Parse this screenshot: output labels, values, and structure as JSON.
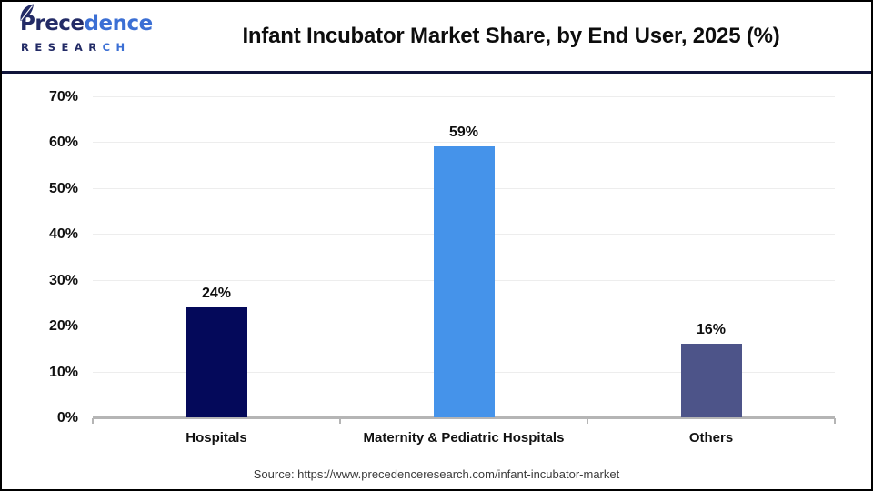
{
  "header": {
    "logo": {
      "name_dark": "Prece",
      "name_blue": "dence",
      "research_dark": "RESEAR",
      "research_blue": "CH"
    },
    "title": "Infant Incubator Market Share, by End User, 2025 (%)"
  },
  "chart_data": {
    "type": "bar",
    "title": "Infant Incubator Market Share, by End User, 2025 (%)",
    "categories": [
      "Hospitals",
      "Maternity & Pediatric Hospitals",
      "Others"
    ],
    "values": [
      24,
      59,
      16
    ],
    "value_labels": [
      "24%",
      "59%",
      "16%"
    ],
    "bar_colors": [
      "#04095a",
      "#4593ea",
      "#4d5489"
    ],
    "xlabel": "",
    "ylabel": "",
    "ylim": [
      0,
      70
    ],
    "ytick_step": 10,
    "ytick_suffix": "%",
    "grid": true,
    "legend_position": "none"
  },
  "footer": {
    "source": "Source: https://www.precedenceresearch.com/infant-incubator-market"
  },
  "colors": {
    "divider": "#10143a",
    "axis": "#b5b5b5",
    "gridline": "#ededed"
  }
}
